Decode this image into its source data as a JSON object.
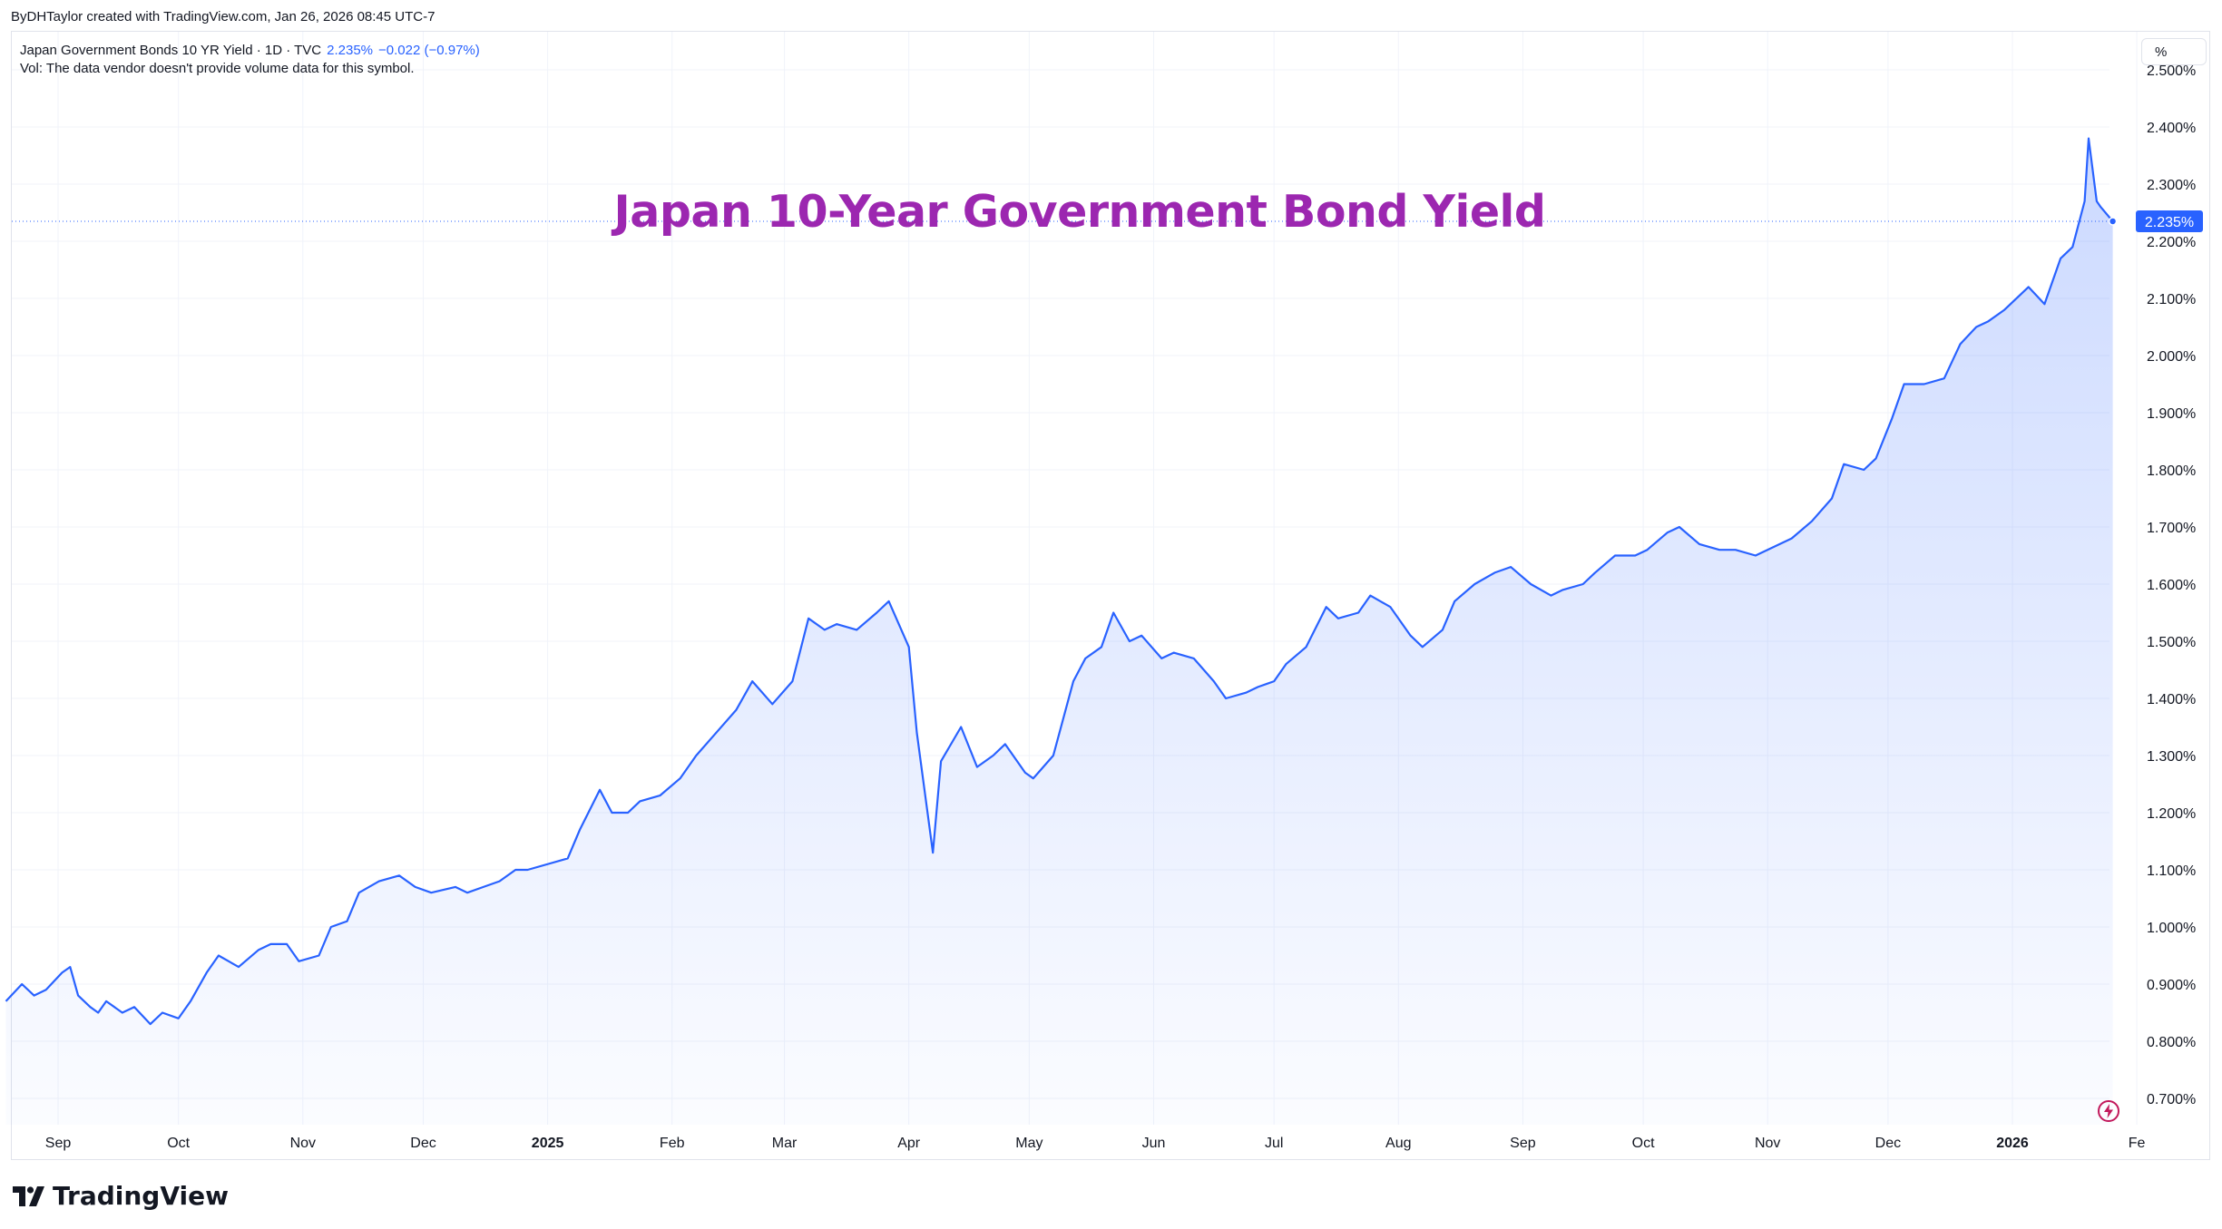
{
  "header": {
    "credit": "ByDHTaylor created with TradingView.com, Jan 26, 2026 08:45 UTC-7"
  },
  "legend": {
    "symbol": "Japan Government Bonds 10 YR Yield · 1D · TVC",
    "price": "2.235%",
    "change": "−0.022 (−0.97%)",
    "volume_note": "Vol: The data vendor doesn't provide volume data for this symbol."
  },
  "unit_button": {
    "label": "%"
  },
  "branding": {
    "name": "TradingView"
  },
  "icons": {
    "logo": "tradingview-logo-icon",
    "bolt": "lightning-icon"
  },
  "colors": {
    "line": "#2962ff",
    "title": "#9c27b0",
    "grid": "#f0f3fa"
  },
  "chart_data": {
    "type": "area",
    "title": "Japan 10-Year Government Bond Yield",
    "last_value_label": "2.235%",
    "ylim": [
      0.66,
      2.48
    ],
    "y_ticks": [
      {
        "value": 0.7,
        "label": "0.700%"
      },
      {
        "value": 0.8,
        "label": "0.800%"
      },
      {
        "value": 0.9,
        "label": "0.900%"
      },
      {
        "value": 1.0,
        "label": "1.000%"
      },
      {
        "value": 1.1,
        "label": "1.100%"
      },
      {
        "value": 1.2,
        "label": "1.200%"
      },
      {
        "value": 1.3,
        "label": "1.300%"
      },
      {
        "value": 1.4,
        "label": "1.400%"
      },
      {
        "value": 1.5,
        "label": "1.500%"
      },
      {
        "value": 1.6,
        "label": "1.600%"
      },
      {
        "value": 1.7,
        "label": "1.700%"
      },
      {
        "value": 1.8,
        "label": "1.800%"
      },
      {
        "value": 1.9,
        "label": "1.900%"
      },
      {
        "value": 2.0,
        "label": "2.000%"
      },
      {
        "value": 2.1,
        "label": "2.100%"
      },
      {
        "value": 2.2,
        "label": "2.200%"
      },
      {
        "value": 2.3,
        "label": "2.300%"
      },
      {
        "value": 2.4,
        "label": "2.400%"
      },
      {
        "value": 2.5,
        "label": "2.500%"
      }
    ],
    "x_ticks": [
      {
        "date": "2024-09-01",
        "label": "Sep",
        "bold": false
      },
      {
        "date": "2024-10-01",
        "label": "Oct",
        "bold": false
      },
      {
        "date": "2024-11-01",
        "label": "Nov",
        "bold": false
      },
      {
        "date": "2024-12-01",
        "label": "Dec",
        "bold": false
      },
      {
        "date": "2025-01-01",
        "label": "2025",
        "bold": true
      },
      {
        "date": "2025-02-01",
        "label": "Feb",
        "bold": false
      },
      {
        "date": "2025-03-01",
        "label": "Mar",
        "bold": false
      },
      {
        "date": "2025-04-01",
        "label": "Apr",
        "bold": false
      },
      {
        "date": "2025-05-01",
        "label": "May",
        "bold": false
      },
      {
        "date": "2025-06-01",
        "label": "Jun",
        "bold": false
      },
      {
        "date": "2025-07-01",
        "label": "Jul",
        "bold": false
      },
      {
        "date": "2025-08-01",
        "label": "Aug",
        "bold": false
      },
      {
        "date": "2025-09-01",
        "label": "Sep",
        "bold": false
      },
      {
        "date": "2025-10-01",
        "label": "Oct",
        "bold": false
      },
      {
        "date": "2025-11-01",
        "label": "Nov",
        "bold": false
      },
      {
        "date": "2025-12-01",
        "label": "Dec",
        "bold": false
      },
      {
        "date": "2026-01-01",
        "label": "2026",
        "bold": true
      },
      {
        "date": "2026-02-01",
        "label": "Fe",
        "bold": false
      }
    ],
    "series": [
      {
        "points": [
          [
            "2024-08-19",
            0.87
          ],
          [
            "2024-08-23",
            0.9
          ],
          [
            "2024-08-26",
            0.88
          ],
          [
            "2024-08-29",
            0.89
          ],
          [
            "2024-09-02",
            0.92
          ],
          [
            "2024-09-04",
            0.93
          ],
          [
            "2024-09-06",
            0.88
          ],
          [
            "2024-09-09",
            0.86
          ],
          [
            "2024-09-11",
            0.85
          ],
          [
            "2024-09-13",
            0.87
          ],
          [
            "2024-09-17",
            0.85
          ],
          [
            "2024-09-20",
            0.86
          ],
          [
            "2024-09-24",
            0.83
          ],
          [
            "2024-09-27",
            0.85
          ],
          [
            "2024-10-01",
            0.84
          ],
          [
            "2024-10-04",
            0.87
          ],
          [
            "2024-10-08",
            0.92
          ],
          [
            "2024-10-11",
            0.95
          ],
          [
            "2024-10-16",
            0.93
          ],
          [
            "2024-10-21",
            0.96
          ],
          [
            "2024-10-24",
            0.97
          ],
          [
            "2024-10-28",
            0.97
          ],
          [
            "2024-10-31",
            0.94
          ],
          [
            "2024-11-05",
            0.95
          ],
          [
            "2024-11-08",
            1.0
          ],
          [
            "2024-11-12",
            1.01
          ],
          [
            "2024-11-15",
            1.06
          ],
          [
            "2024-11-20",
            1.08
          ],
          [
            "2024-11-25",
            1.09
          ],
          [
            "2024-11-29",
            1.07
          ],
          [
            "2024-12-03",
            1.06
          ],
          [
            "2024-12-09",
            1.07
          ],
          [
            "2024-12-12",
            1.06
          ],
          [
            "2024-12-16",
            1.07
          ],
          [
            "2024-12-20",
            1.08
          ],
          [
            "2024-12-24",
            1.1
          ],
          [
            "2024-12-27",
            1.1
          ],
          [
            "2025-01-06",
            1.12
          ],
          [
            "2025-01-09",
            1.17
          ],
          [
            "2025-01-14",
            1.24
          ],
          [
            "2025-01-17",
            1.2
          ],
          [
            "2025-01-21",
            1.2
          ],
          [
            "2025-01-24",
            1.22
          ],
          [
            "2025-01-29",
            1.23
          ],
          [
            "2025-02-03",
            1.26
          ],
          [
            "2025-02-07",
            1.3
          ],
          [
            "2025-02-12",
            1.34
          ],
          [
            "2025-02-17",
            1.38
          ],
          [
            "2025-02-21",
            1.43
          ],
          [
            "2025-02-26",
            1.39
          ],
          [
            "2025-03-03",
            1.43
          ],
          [
            "2025-03-07",
            1.54
          ],
          [
            "2025-03-11",
            1.52
          ],
          [
            "2025-03-14",
            1.53
          ],
          [
            "2025-03-19",
            1.52
          ],
          [
            "2025-03-24",
            1.55
          ],
          [
            "2025-03-27",
            1.57
          ],
          [
            "2025-04-01",
            1.49
          ],
          [
            "2025-04-03",
            1.34
          ],
          [
            "2025-04-07",
            1.13
          ],
          [
            "2025-04-09",
            1.29
          ],
          [
            "2025-04-14",
            1.35
          ],
          [
            "2025-04-18",
            1.28
          ],
          [
            "2025-04-22",
            1.3
          ],
          [
            "2025-04-25",
            1.32
          ],
          [
            "2025-04-30",
            1.27
          ],
          [
            "2025-05-02",
            1.26
          ],
          [
            "2025-05-07",
            1.3
          ],
          [
            "2025-05-12",
            1.43
          ],
          [
            "2025-05-15",
            1.47
          ],
          [
            "2025-05-19",
            1.49
          ],
          [
            "2025-05-22",
            1.55
          ],
          [
            "2025-05-26",
            1.5
          ],
          [
            "2025-05-29",
            1.51
          ],
          [
            "2025-06-03",
            1.47
          ],
          [
            "2025-06-06",
            1.48
          ],
          [
            "2025-06-11",
            1.47
          ],
          [
            "2025-06-16",
            1.43
          ],
          [
            "2025-06-19",
            1.4
          ],
          [
            "2025-06-24",
            1.41
          ],
          [
            "2025-06-27",
            1.42
          ],
          [
            "2025-07-01",
            1.43
          ],
          [
            "2025-07-04",
            1.46
          ],
          [
            "2025-07-09",
            1.49
          ],
          [
            "2025-07-14",
            1.56
          ],
          [
            "2025-07-17",
            1.54
          ],
          [
            "2025-07-22",
            1.55
          ],
          [
            "2025-07-25",
            1.58
          ],
          [
            "2025-07-30",
            1.56
          ],
          [
            "2025-08-04",
            1.51
          ],
          [
            "2025-08-07",
            1.49
          ],
          [
            "2025-08-12",
            1.52
          ],
          [
            "2025-08-15",
            1.57
          ],
          [
            "2025-08-20",
            1.6
          ],
          [
            "2025-08-25",
            1.62
          ],
          [
            "2025-08-29",
            1.63
          ],
          [
            "2025-09-03",
            1.6
          ],
          [
            "2025-09-08",
            1.58
          ],
          [
            "2025-09-11",
            1.59
          ],
          [
            "2025-09-16",
            1.6
          ],
          [
            "2025-09-19",
            1.62
          ],
          [
            "2025-09-24",
            1.65
          ],
          [
            "2025-09-29",
            1.65
          ],
          [
            "2025-10-02",
            1.66
          ],
          [
            "2025-10-07",
            1.69
          ],
          [
            "2025-10-10",
            1.7
          ],
          [
            "2025-10-15",
            1.67
          ],
          [
            "2025-10-20",
            1.66
          ],
          [
            "2025-10-24",
            1.66
          ],
          [
            "2025-10-29",
            1.65
          ],
          [
            "2025-11-04",
            1.67
          ],
          [
            "2025-11-07",
            1.68
          ],
          [
            "2025-11-12",
            1.71
          ],
          [
            "2025-11-17",
            1.75
          ],
          [
            "2025-11-20",
            1.81
          ],
          [
            "2025-11-25",
            1.8
          ],
          [
            "2025-11-28",
            1.82
          ],
          [
            "2025-12-02",
            1.89
          ],
          [
            "2025-12-05",
            1.95
          ],
          [
            "2025-12-10",
            1.95
          ],
          [
            "2025-12-15",
            1.96
          ],
          [
            "2025-12-19",
            2.02
          ],
          [
            "2025-12-23",
            2.05
          ],
          [
            "2025-12-26",
            2.06
          ],
          [
            "2025-12-30",
            2.08
          ],
          [
            "2026-01-05",
            2.12
          ],
          [
            "2026-01-09",
            2.09
          ],
          [
            "2026-01-13",
            2.17
          ],
          [
            "2026-01-16",
            2.19
          ],
          [
            "2026-01-19",
            2.27
          ],
          [
            "2026-01-20",
            2.38
          ],
          [
            "2026-01-22",
            2.27
          ],
          [
            "2026-01-23",
            2.26
          ],
          [
            "2026-01-26",
            2.235
          ]
        ]
      }
    ]
  }
}
